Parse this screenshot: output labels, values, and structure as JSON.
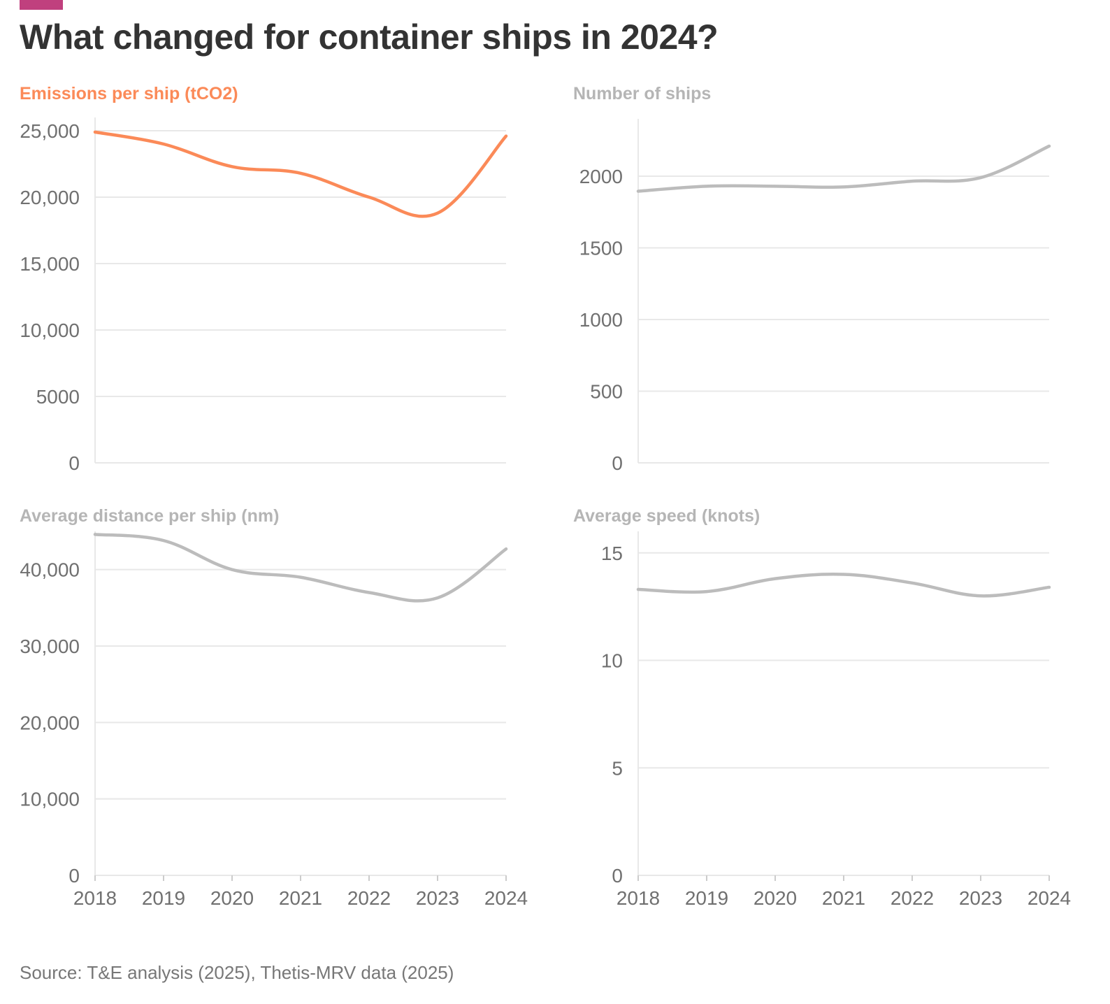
{
  "title": "What changed for container ships in 2024?",
  "source": "Source: T&E analysis (2025), Thetis-MRV data (2025)",
  "colors": {
    "accent_bar": "#c0407e",
    "highlight": "#fb8a58",
    "muted_line": "#bcbcbc",
    "muted_title": "#b5b5b5",
    "grid": "#e8e8e8",
    "tick_text": "#707070",
    "title_text": "#333333"
  },
  "chart_data": [
    {
      "type": "line",
      "title": "Emissions per ship (tCO2)",
      "highlight": true,
      "x": [
        "2018",
        "2019",
        "2020",
        "2021",
        "2022",
        "2023",
        "2024"
      ],
      "values": [
        24900,
        24000,
        22300,
        21800,
        20000,
        18800,
        24600
      ],
      "yticks": [
        0,
        5000,
        10000,
        15000,
        20000,
        25000
      ],
      "ytick_labels": [
        "0",
        "5000",
        "10,000",
        "15,000",
        "20,000",
        "25,000"
      ],
      "ylim": [
        0,
        26000
      ],
      "show_x_labels": false
    },
    {
      "type": "line",
      "title": "Number of ships",
      "highlight": false,
      "x": [
        "2018",
        "2019",
        "2020",
        "2021",
        "2022",
        "2023",
        "2024"
      ],
      "values": [
        1895,
        1930,
        1930,
        1925,
        1965,
        1990,
        2210
      ],
      "yticks": [
        0,
        500,
        1000,
        1500,
        2000
      ],
      "ytick_labels": [
        "0",
        "500",
        "1000",
        "1500",
        "2000"
      ],
      "ylim": [
        0,
        2400
      ],
      "show_x_labels": false
    },
    {
      "type": "line",
      "title": "Average distance per ship (nm)",
      "highlight": false,
      "x": [
        "2018",
        "2019",
        "2020",
        "2021",
        "2022",
        "2023",
        "2024"
      ],
      "values": [
        44600,
        43800,
        40000,
        39000,
        37000,
        36300,
        42700
      ],
      "yticks": [
        0,
        10000,
        20000,
        30000,
        40000
      ],
      "ytick_labels": [
        "0",
        "10,000",
        "20,000",
        "30,000",
        "40,000"
      ],
      "ylim": [
        0,
        45000
      ],
      "show_x_labels": true
    },
    {
      "type": "line",
      "title": "Average speed (knots)",
      "highlight": false,
      "x": [
        "2018",
        "2019",
        "2020",
        "2021",
        "2022",
        "2023",
        "2024"
      ],
      "values": [
        13.3,
        13.2,
        13.8,
        14.0,
        13.6,
        13.0,
        13.4
      ],
      "yticks": [
        0,
        5,
        10,
        15
      ],
      "ytick_labels": [
        "0",
        "5",
        "10",
        "15"
      ],
      "ylim": [
        0,
        16
      ],
      "show_x_labels": true
    }
  ]
}
